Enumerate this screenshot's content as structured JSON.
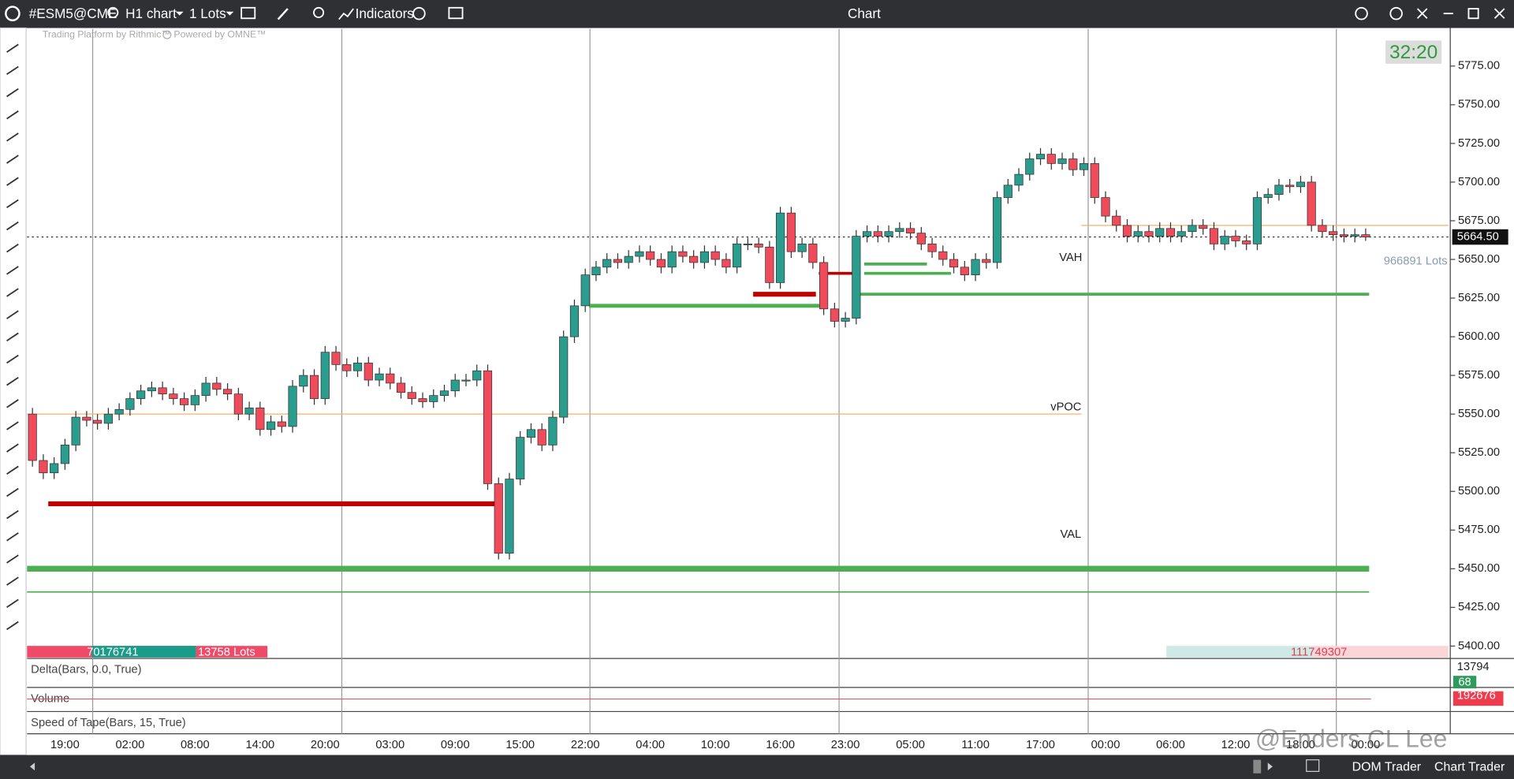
{
  "toolbar": {
    "symbol": "#ESM5@CME",
    "timeframe": "H1 chart",
    "quantity": "1 Lots",
    "indicators": "Indicators",
    "title": "Chart"
  },
  "watermark": {
    "platform": "Trading Platform by Rithmic™",
    "engine": "Powered by OMNE™",
    "author": "@Enders CL Lee"
  },
  "chart_data": {
    "type": "candlestick",
    "categories": [
      null,
      null,
      null,
      "19:00",
      null,
      null,
      null,
      null,
      null,
      "02:00",
      null,
      null,
      null,
      null,
      null,
      "08:00",
      null,
      null,
      null,
      null,
      null,
      "14:00",
      null,
      null,
      null,
      null,
      null,
      "20:00",
      null,
      null,
      null,
      null,
      null,
      "03:00",
      null,
      null,
      null,
      null,
      null,
      "09:00",
      null,
      null,
      null,
      null,
      null,
      "15:00",
      null,
      null,
      null,
      null,
      null,
      "22:00",
      null,
      null,
      null,
      null,
      null,
      "04:00",
      null,
      null,
      null,
      null,
      null,
      "10:00",
      null,
      null,
      null,
      null,
      null,
      "16:00",
      null,
      null,
      null,
      null,
      null,
      "23:00",
      null,
      null,
      null,
      null,
      null,
      "05:00",
      null,
      null,
      null,
      null,
      null,
      "11:00",
      null,
      null,
      null,
      null,
      null,
      "17:00",
      null,
      null,
      null,
      null,
      null,
      "00:00",
      null,
      null,
      null,
      null,
      null,
      "06:00",
      null,
      null,
      null,
      null,
      null,
      "12:00",
      null,
      null,
      null,
      null,
      null,
      "18:00",
      null,
      null,
      null,
      null,
      null,
      "00:00"
    ],
    "open": [
      5550,
      5520,
      5512,
      5518,
      5530,
      5548,
      5546,
      5544,
      5550,
      5553,
      5560,
      5565,
      5567,
      5563,
      5560,
      5556,
      5562,
      5570,
      5566,
      5563,
      5550,
      5554,
      5540,
      5545,
      5542,
      5568,
      5575,
      5560,
      5590,
      5582,
      5578,
      5583,
      5572,
      5576,
      5570,
      5564,
      5560,
      5558,
      5562,
      5565,
      5572,
      5572,
      5578,
      5505,
      5460,
      5508,
      5535,
      5540,
      5530,
      5548,
      5600,
      5620,
      5640,
      5645,
      5650,
      5648,
      5652,
      5655,
      5650,
      5645,
      5655,
      5652,
      5648,
      5655,
      5650,
      5645,
      5660,
      5660,
      5658,
      5635,
      5680,
      5655,
      5660,
      5648,
      5618,
      5610,
      5612,
      5665,
      5668,
      5665,
      5668,
      5670,
      5667,
      5660,
      5655,
      5650,
      5645,
      5640,
      5650,
      5648,
      5690,
      5698,
      5705,
      5715,
      5718,
      5712,
      5715,
      5708,
      5712,
      5690,
      5678,
      5672,
      5665,
      5668,
      5665,
      5670,
      5665,
      5668,
      5672,
      5670,
      5660,
      5665,
      5662,
      5660,
      5690,
      5692,
      5698,
      5697,
      5700,
      5672,
      5668,
      5666,
      5665,
      5666
    ],
    "high": [
      5554,
      5524,
      5522,
      5534,
      5552,
      5552,
      5550,
      5554,
      5557,
      5564,
      5569,
      5571,
      5571,
      5567,
      5564,
      5566,
      5574,
      5574,
      5570,
      5567,
      5558,
      5558,
      5549,
      5549,
      5572,
      5579,
      5579,
      5594,
      5594,
      5586,
      5587,
      5587,
      5580,
      5580,
      5574,
      5568,
      5564,
      5566,
      5569,
      5576,
      5576,
      5582,
      5582,
      5509,
      5512,
      5539,
      5544,
      5544,
      5552,
      5604,
      5624,
      5644,
      5649,
      5654,
      5654,
      5656,
      5659,
      5659,
      5654,
      5659,
      5659,
      5656,
      5659,
      5659,
      5654,
      5664,
      5664,
      5664,
      5662,
      5684,
      5684,
      5664,
      5664,
      5652,
      5622,
      5616,
      5669,
      5672,
      5672,
      5672,
      5674,
      5674,
      5671,
      5664,
      5659,
      5654,
      5649,
      5654,
      5654,
      5694,
      5702,
      5709,
      5719,
      5722,
      5722,
      5719,
      5719,
      5716,
      5716,
      5694,
      5682,
      5676,
      5672,
      5672,
      5674,
      5674,
      5672,
      5676,
      5676,
      5674,
      5669,
      5669,
      5666,
      5694,
      5696,
      5702,
      5702,
      5704,
      5704,
      5676,
      5672,
      5670,
      5670,
      5670
    ],
    "low": [
      5516,
      5508,
      5508,
      5514,
      5526,
      5542,
      5540,
      5540,
      5546,
      5549,
      5556,
      5561,
      5559,
      5556,
      5552,
      5552,
      5558,
      5562,
      5559,
      5546,
      5546,
      5536,
      5536,
      5538,
      5538,
      5564,
      5556,
      5556,
      5578,
      5574,
      5574,
      5568,
      5568,
      5566,
      5560,
      5556,
      5554,
      5554,
      5558,
      5561,
      5568,
      5568,
      5501,
      5456,
      5456,
      5504,
      5531,
      5526,
      5526,
      5544,
      5596,
      5616,
      5636,
      5641,
      5644,
      5644,
      5648,
      5646,
      5641,
      5641,
      5648,
      5644,
      5644,
      5646,
      5641,
      5641,
      5656,
      5654,
      5631,
      5631,
      5651,
      5651,
      5644,
      5614,
      5606,
      5606,
      5608,
      5661,
      5661,
      5661,
      5664,
      5663,
      5656,
      5651,
      5646,
      5641,
      5636,
      5636,
      5644,
      5644,
      5686,
      5694,
      5701,
      5711,
      5708,
      5708,
      5704,
      5704,
      5686,
      5674,
      5668,
      5661,
      5661,
      5661,
      5661,
      5661,
      5661,
      5664,
      5666,
      5656,
      5656,
      5658,
      5656,
      5656,
      5686,
      5688,
      5693,
      5693,
      5668,
      5664,
      5662,
      5661,
      5661,
      5662
    ],
    "close": [
      5520,
      5512,
      5518,
      5530,
      5548,
      5546,
      5544,
      5550,
      5553,
      5560,
      5565,
      5567,
      5563,
      5560,
      5556,
      5562,
      5570,
      5566,
      5563,
      5550,
      5554,
      5540,
      5545,
      5542,
      5568,
      5575,
      5560,
      5590,
      5582,
      5578,
      5583,
      5572,
      5576,
      5570,
      5564,
      5560,
      5558,
      5562,
      5565,
      5572,
      5572,
      5578,
      5505,
      5460,
      5508,
      5535,
      5540,
      5530,
      5548,
      5600,
      5620,
      5640,
      5645,
      5650,
      5648,
      5652,
      5655,
      5650,
      5645,
      5655,
      5652,
      5648,
      5655,
      5650,
      5645,
      5660,
      5660,
      5658,
      5635,
      5680,
      5655,
      5660,
      5648,
      5618,
      5610,
      5612,
      5665,
      5668,
      5665,
      5668,
      5670,
      5667,
      5660,
      5655,
      5650,
      5645,
      5640,
      5650,
      5648,
      5690,
      5698,
      5705,
      5715,
      5718,
      5712,
      5715,
      5708,
      5712,
      5690,
      5678,
      5672,
      5665,
      5668,
      5665,
      5670,
      5665,
      5668,
      5672,
      5670,
      5660,
      5665,
      5662,
      5660,
      5690,
      5692,
      5698,
      5697,
      5700,
      5672,
      5668,
      5666,
      5665,
      5666,
      5664.5
    ],
    "up_color": "#2a9d8f",
    "down_color": "#ef4b5b",
    "ylim": [
      5392,
      5799
    ],
    "yticks": [
      {
        "value": 5400,
        "label": "5400.00"
      },
      {
        "value": 5425,
        "label": "5425.00"
      },
      {
        "value": 5450,
        "label": "5450.00"
      },
      {
        "value": 5475,
        "label": "5475.00"
      },
      {
        "value": 5500,
        "label": "5500.00"
      },
      {
        "value": 5525,
        "label": "5525.00"
      },
      {
        "value": 5550,
        "label": "5550.00"
      },
      {
        "value": 5575,
        "label": "5575.00"
      },
      {
        "value": 5600,
        "label": "5600.00"
      },
      {
        "value": 5625,
        "label": "5625.00"
      },
      {
        "value": 5650,
        "label": "5650.00"
      },
      {
        "value": 5675,
        "label": "5675.00"
      },
      {
        "value": 5700,
        "label": "5700.00"
      },
      {
        "value": 5725,
        "label": "5725.00"
      },
      {
        "value": 5750,
        "label": "5750.00"
      },
      {
        "value": 5775,
        "label": "5775.00"
      }
    ],
    "current_price": {
      "value": 5664.5,
      "label": "5664.50"
    },
    "timer": "32:20",
    "levels": [
      {
        "price": 5550,
        "color": "#f6b26b"
      },
      {
        "price": 5450,
        "color": "#4caf50"
      },
      {
        "price": 5435,
        "color": "#4caf50"
      },
      {
        "price": 5492,
        "color": "#c00000"
      },
      {
        "price": 5620,
        "color": "#4caf50"
      },
      {
        "price": 5627.5,
        "color": "#4caf50"
      },
      {
        "price": 5672,
        "color": "#f6b26b"
      },
      {
        "price": 5627.5,
        "color": "#c00000"
      },
      {
        "price": 5641,
        "color": "#c00000"
      },
      {
        "price": 5641,
        "color": "#4caf50"
      },
      {
        "price": 5647,
        "color": "#4caf50"
      }
    ],
    "annotations": [
      "VAH",
      "vPOC",
      "VAL",
      "966891 Lots"
    ],
    "lots": {
      "left": 70176741,
      "left_unit": "13758 Lots",
      "right": 111749307
    }
  },
  "panels": [
    {
      "title": "Delta(Bars, 0.0, True)",
      "value": 13794,
      "badge": 68
    },
    {
      "title": "Volume",
      "value": 192676
    },
    {
      "title": "Speed of Tape(Bars, 15, True)"
    }
  ],
  "footer": {
    "tabs": [
      "DOM Trader",
      "Chart Trader"
    ]
  }
}
